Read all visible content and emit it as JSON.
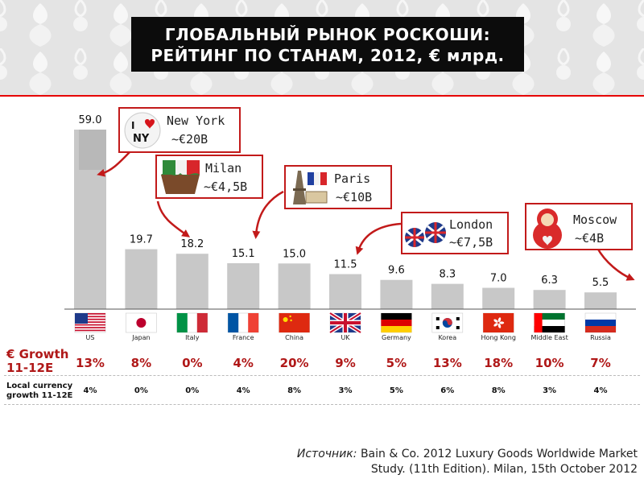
{
  "title": {
    "line1": "ГЛОБАЛЬНЫЙ РЫНОК РОСКОШИ:",
    "line2": "РЕЙТИНГ ПО СТАНАМ, 2012, € млрд."
  },
  "chart_data": {
    "type": "bar",
    "title": "ГЛОБАЛЬНЫЙ РЫНОК РОСКОШИ: РЕЙТИНГ ПО СТАНАМ, 2012, € млрд.",
    "categories": [
      "US",
      "Japan",
      "Italy",
      "France",
      "China",
      "UK",
      "Germany",
      "Korea",
      "Hong Kong",
      "Middle East",
      "Russia"
    ],
    "values": [
      59.0,
      19.7,
      18.2,
      15.1,
      15.0,
      11.5,
      9.6,
      8.3,
      7.0,
      6.3,
      5.5
    ],
    "value_labels": [
      "59.0",
      "19.7",
      "18.2",
      "15.1",
      "15.0",
      "11.5",
      "9.6",
      "8.3",
      "7.0",
      "6.3",
      "5.5"
    ],
    "ylim": [
      0,
      59
    ],
    "grid": false,
    "bar_color": "#c8c8c8",
    "growth_label_line1": "€ Growth",
    "growth_label_line2": "11-12E",
    "growth": [
      "13%",
      "8%",
      "0%",
      "4%",
      "20%",
      "9%",
      "5%",
      "13%",
      "18%",
      "10%",
      "7%"
    ],
    "local_label_line1": "Local currency",
    "local_label_line2": "growth 11-12E",
    "local_growth": [
      "4%",
      "0%",
      "0%",
      "4%",
      "8%",
      "3%",
      "5%",
      "6%",
      "8%",
      "3%",
      "4%"
    ],
    "annotations": [
      {
        "city": "New York",
        "value": "~€20B",
        "target": "US"
      },
      {
        "city": "Milan",
        "value": "~€4,5B",
        "target": "Italy"
      },
      {
        "city": "Paris",
        "value": "~€10B",
        "target": "France"
      },
      {
        "city": "London",
        "value": "~€7,5B",
        "target": "UK"
      },
      {
        "city": "Moscow",
        "value": "~€4B",
        "target": "Russia"
      }
    ]
  },
  "source": {
    "label": "Источник:",
    "line1": "Bain & Co. 2012 Luxury Goods Worldwide Market",
    "line2": "Study. (11th Edition). Milan, 15th October 2012"
  },
  "colors": {
    "accent": "#c21a1a",
    "growth_text": "#b01818",
    "title_bg": "#0c0c0c",
    "bar": "#c8c8c8"
  },
  "icons": [
    "flag-us-icon",
    "flag-japan-icon",
    "flag-italy-icon",
    "flag-france-icon",
    "flag-china-icon",
    "flag-uk-icon",
    "flag-germany-icon",
    "flag-korea-icon",
    "flag-hongkong-icon",
    "flag-uae-icon",
    "flag-russia-icon",
    "i-love-ny-icon",
    "cupcake-icon",
    "eiffel-tower-icon",
    "union-jack-cookies-icon",
    "matryoshka-icon"
  ]
}
